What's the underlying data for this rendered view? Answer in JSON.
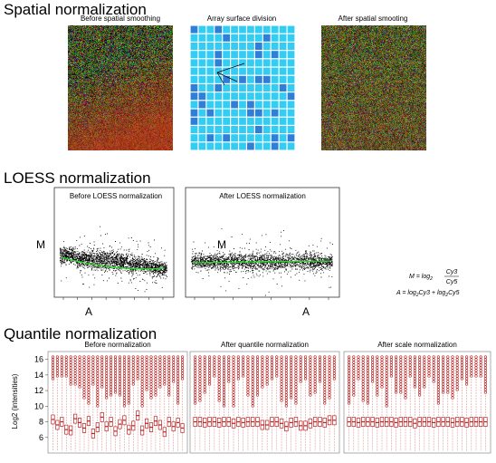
{
  "sections": [
    {
      "title": "Spatial normalization",
      "panels": [
        "Before spatial smoothing",
        "Array surface division",
        "After spatial smooting"
      ]
    },
    {
      "title": "LOESS normalization",
      "panels": [
        "Before LOESS normalization",
        "After LOESS normalization"
      ],
      "y_label": "M",
      "x_label": "A",
      "formula_m": {
        "lhs": "M = log",
        "sub": "2",
        "num": "Cy3",
        "den": "Cy5"
      },
      "formula_a": {
        "lhs": "A =  log",
        "sub": "2",
        "mid": "Cy3 + log",
        "sub2": "2",
        "end": "Cy5"
      }
    },
    {
      "title": "Quantile normalization",
      "y_label": "Log2 (intensities)",
      "ylim": [
        4,
        17
      ],
      "yticks": [
        6,
        8,
        10,
        12,
        14,
        16
      ],
      "panels": [
        {
          "title": "Before normalization",
          "medians": [
            8.3,
            7.6,
            8.0,
            7.0,
            6.9,
            8.4,
            7.9,
            7.2,
            8.1,
            6.5,
            7.3,
            8.6,
            7.4,
            8.0,
            6.8,
            7.7,
            8.2,
            7.0,
            7.5,
            8.8,
            6.9,
            7.8,
            7.3,
            8.1,
            7.6,
            6.7,
            8.0,
            7.4,
            7.9,
            7.2
          ]
        },
        {
          "title": "After quantile normalization",
          "medians": [
            8.0,
            8.0,
            7.9,
            8.0,
            8.0,
            7.9,
            8.0,
            8.0,
            7.8,
            8.0,
            7.9,
            8.0,
            8.0,
            8.0,
            7.6,
            7.6,
            8.0,
            8.0,
            7.8,
            7.4,
            7.9,
            8.0,
            7.5,
            7.5,
            7.8,
            8.0,
            8.0,
            7.9,
            8.2,
            8.2
          ]
        },
        {
          "title": "After scale normalization",
          "medians": [
            8.0,
            8.0,
            7.9,
            8.0,
            8.0,
            8.0,
            7.9,
            8.0,
            8.0,
            8.0,
            7.9,
            8.0,
            8.0,
            8.0,
            7.8,
            8.0,
            8.0,
            8.0,
            7.9,
            8.0,
            8.0,
            8.0,
            7.9,
            8.0,
            8.0,
            7.9,
            8.0,
            8.0,
            8.0,
            8.0
          ]
        }
      ]
    }
  ]
}
